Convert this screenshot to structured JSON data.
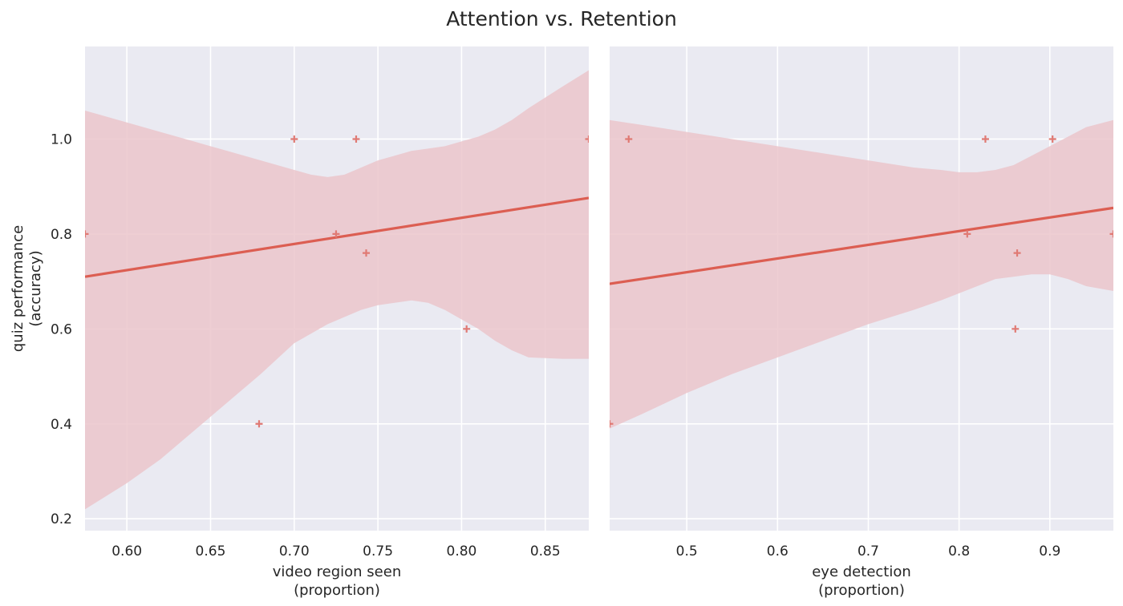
{
  "figure": {
    "title": "Attention vs. Retention"
  },
  "colors": {
    "panel_bg": "#EAEAF2",
    "grid": "#FFFFFF",
    "line": "#DC5E52",
    "marker": "#E07A74",
    "band": "#EBC6CB"
  },
  "chart_data": [
    {
      "type": "scatter",
      "marker": "plus",
      "xlabel": [
        "video region seen",
        "(proportion)"
      ],
      "ylabel": [
        "quiz performance",
        "(accuracy)"
      ],
      "xlim": [
        0.575,
        0.876
      ],
      "ylim": [
        0.175,
        1.195
      ],
      "xticks": [
        0.6,
        0.65,
        0.7,
        0.75,
        0.8,
        0.85
      ],
      "xtick_labels": [
        "0.60",
        "0.65",
        "0.70",
        "0.75",
        "0.80",
        "0.85"
      ],
      "yticks": [
        0.2,
        0.4,
        0.6,
        0.8,
        1.0
      ],
      "ytick_labels": [
        "0.2",
        "0.4",
        "0.6",
        "0.8",
        "1.0"
      ],
      "points": [
        [
          0.575,
          0.8
        ],
        [
          0.679,
          0.4
        ],
        [
          0.7,
          1.0
        ],
        [
          0.725,
          0.8
        ],
        [
          0.737,
          1.0
        ],
        [
          0.743,
          0.76
        ],
        [
          0.803,
          0.6
        ],
        [
          0.876,
          1.0
        ]
      ],
      "regression": {
        "x": [
          0.575,
          0.876
        ],
        "y": [
          0.71,
          0.876
        ]
      },
      "ci_band": {
        "x": [
          0.575,
          0.6,
          0.62,
          0.64,
          0.66,
          0.68,
          0.7,
          0.71,
          0.72,
          0.73,
          0.74,
          0.75,
          0.76,
          0.77,
          0.78,
          0.79,
          0.8,
          0.81,
          0.82,
          0.83,
          0.84,
          0.86,
          0.876
        ],
        "upper": [
          1.06,
          1.035,
          1.015,
          0.995,
          0.975,
          0.955,
          0.935,
          0.925,
          0.92,
          0.925,
          0.94,
          0.955,
          0.965,
          0.975,
          0.98,
          0.985,
          0.995,
          1.005,
          1.02,
          1.04,
          1.065,
          1.11,
          1.145
        ],
        "lower": [
          0.22,
          0.275,
          0.325,
          0.385,
          0.445,
          0.505,
          0.57,
          0.59,
          0.61,
          0.625,
          0.64,
          0.65,
          0.655,
          0.66,
          0.655,
          0.64,
          0.62,
          0.6,
          0.575,
          0.555,
          0.54,
          0.537,
          0.537
        ]
      }
    },
    {
      "type": "scatter",
      "marker": "plus",
      "xlabel": [
        "eye detection",
        "(proportion)"
      ],
      "ylabel": [
        "",
        ""
      ],
      "xlim": [
        0.415,
        0.97
      ],
      "ylim": [
        0.175,
        1.195
      ],
      "xticks": [
        0.5,
        0.6,
        0.7,
        0.8,
        0.9
      ],
      "xtick_labels": [
        "0.5",
        "0.6",
        "0.7",
        "0.8",
        "0.9"
      ],
      "yticks": [
        0.2,
        0.4,
        0.6,
        0.8,
        1.0
      ],
      "ytick_labels": [],
      "points": [
        [
          0.415,
          0.4
        ],
        [
          0.436,
          1.0
        ],
        [
          0.809,
          0.8
        ],
        [
          0.829,
          1.0
        ],
        [
          0.862,
          0.6
        ],
        [
          0.864,
          0.76
        ],
        [
          0.903,
          1.0
        ],
        [
          0.97,
          0.8
        ]
      ],
      "regression": {
        "x": [
          0.415,
          0.97
        ],
        "y": [
          0.695,
          0.855
        ]
      },
      "ci_band": {
        "x": [
          0.415,
          0.45,
          0.5,
          0.55,
          0.6,
          0.65,
          0.7,
          0.75,
          0.78,
          0.8,
          0.82,
          0.84,
          0.86,
          0.88,
          0.9,
          0.92,
          0.94,
          0.97
        ],
        "upper": [
          1.04,
          1.03,
          1.015,
          1.0,
          0.985,
          0.97,
          0.955,
          0.94,
          0.935,
          0.93,
          0.93,
          0.935,
          0.945,
          0.965,
          0.985,
          1.005,
          1.025,
          1.04
        ],
        "lower": [
          0.39,
          0.42,
          0.465,
          0.505,
          0.54,
          0.575,
          0.61,
          0.64,
          0.66,
          0.675,
          0.69,
          0.705,
          0.71,
          0.715,
          0.715,
          0.705,
          0.69,
          0.68
        ]
      }
    }
  ]
}
